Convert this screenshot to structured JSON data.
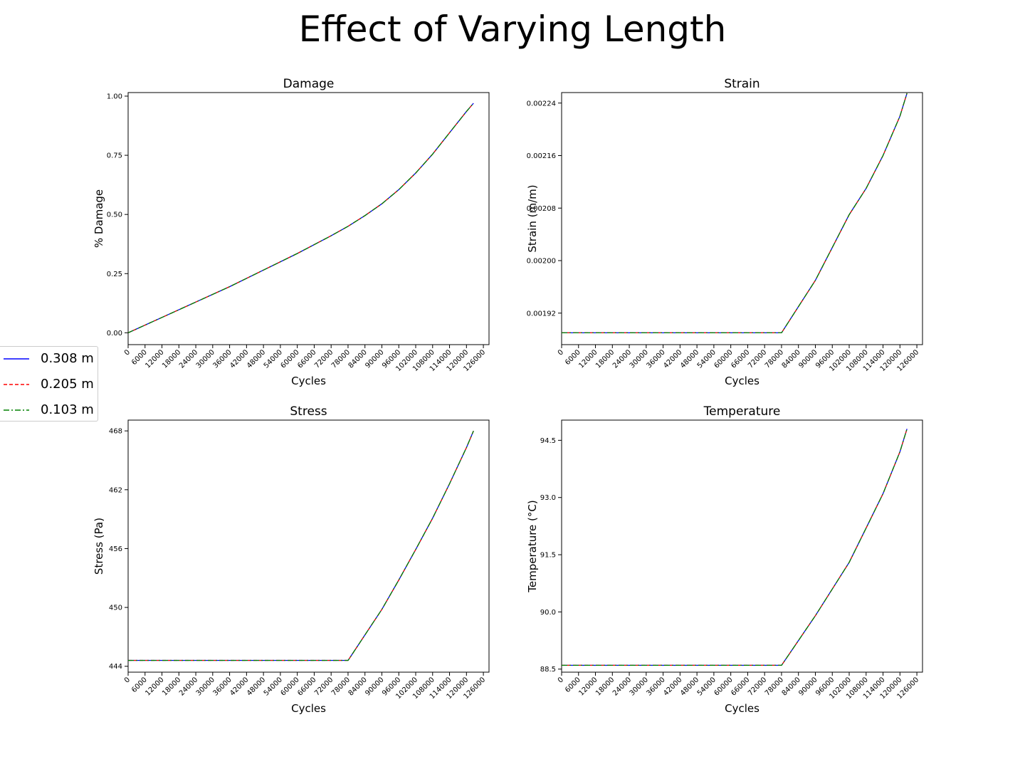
{
  "figure": {
    "title": "Effect of Varying Length",
    "legend": [
      {
        "label": "0.308 m",
        "color": "#0000ff",
        "style": "solid"
      },
      {
        "label": "0.205 m",
        "color": "#ff0000",
        "style": "dashed"
      },
      {
        "label": "0.103 m",
        "color": "#008000",
        "style": "dashdot"
      }
    ]
  },
  "chart_data": [
    {
      "type": "line",
      "title": "Damage",
      "xlabel": "Cycles",
      "ylabel": "% Damage",
      "xlim": [
        0,
        128000
      ],
      "ylim": [
        -0.05,
        1.015
      ],
      "xticks": [
        0,
        6000,
        12000,
        18000,
        24000,
        30000,
        36000,
        42000,
        48000,
        54000,
        60000,
        66000,
        72000,
        78000,
        84000,
        90000,
        96000,
        102000,
        108000,
        114000,
        120000,
        126000
      ],
      "yticks": [
        "0.00",
        "0.25",
        "0.50",
        "0.75",
        "1.00"
      ],
      "ytick_values": [
        0,
        0.25,
        0.5,
        0.75,
        1.0
      ],
      "x": [
        0,
        12000,
        24000,
        36000,
        48000,
        60000,
        72000,
        78000,
        84000,
        90000,
        96000,
        102000,
        108000,
        114000,
        120000,
        122500
      ],
      "series": [
        {
          "name": "0.308 m",
          "values": [
            0,
            0.065,
            0.13,
            0.195,
            0.265,
            0.335,
            0.41,
            0.45,
            0.495,
            0.545,
            0.605,
            0.675,
            0.755,
            0.845,
            0.935,
            0.97
          ]
        },
        {
          "name": "0.205 m",
          "values": [
            0,
            0.065,
            0.13,
            0.195,
            0.265,
            0.335,
            0.41,
            0.45,
            0.495,
            0.545,
            0.605,
            0.675,
            0.755,
            0.845,
            0.935,
            0.97
          ]
        },
        {
          "name": "0.103 m",
          "values": [
            0,
            0.065,
            0.13,
            0.195,
            0.265,
            0.335,
            0.41,
            0.45,
            0.495,
            0.545,
            0.605,
            0.675,
            0.755,
            0.845,
            0.935,
            0.97
          ]
        }
      ]
    },
    {
      "type": "line",
      "title": "Strain",
      "xlabel": "Cycles",
      "ylabel": "Strain (m/m)",
      "xlim": [
        0,
        128000
      ],
      "ylim": [
        0.001872,
        0.002256
      ],
      "xticks": [
        0,
        6000,
        12000,
        18000,
        24000,
        30000,
        36000,
        42000,
        48000,
        54000,
        60000,
        66000,
        72000,
        78000,
        84000,
        90000,
        96000,
        102000,
        108000,
        114000,
        120000,
        126000
      ],
      "yticks": [
        "0.00192",
        "0.00200",
        "0.00208",
        "0.00216",
        "0.00224"
      ],
      "ytick_values": [
        0.00192,
        0.002,
        0.00208,
        0.00216,
        0.00224
      ],
      "x": [
        0,
        78000,
        90000,
        96000,
        102000,
        108000,
        114000,
        120000,
        122500
      ],
      "series": [
        {
          "name": "0.308 m",
          "values": [
            0.00189,
            0.00189,
            0.00197,
            0.00202,
            0.00207,
            0.00211,
            0.00216,
            0.00222,
            0.002255
          ]
        },
        {
          "name": "0.205 m",
          "values": [
            0.00189,
            0.00189,
            0.00197,
            0.00202,
            0.00207,
            0.00211,
            0.00216,
            0.00222,
            0.002255
          ]
        },
        {
          "name": "0.103 m",
          "values": [
            0.00189,
            0.00189,
            0.00197,
            0.00202,
            0.00207,
            0.00211,
            0.00216,
            0.00222,
            0.002255
          ]
        }
      ]
    },
    {
      "type": "line",
      "title": "Stress",
      "xlabel": "Cycles",
      "ylabel": "Stress (Pa)",
      "xlim": [
        0,
        128000
      ],
      "ylim": [
        443.4,
        469.1
      ],
      "xticks": [
        0,
        6000,
        12000,
        18000,
        24000,
        30000,
        36000,
        42000,
        48000,
        54000,
        60000,
        66000,
        72000,
        78000,
        84000,
        90000,
        96000,
        102000,
        108000,
        114000,
        120000,
        126000
      ],
      "yticks": [
        "444",
        "450",
        "456",
        "462",
        "468"
      ],
      "ytick_values": [
        444,
        450,
        456,
        462,
        468
      ],
      "x": [
        0,
        78000,
        90000,
        96000,
        102000,
        108000,
        114000,
        120000,
        122500
      ],
      "series": [
        {
          "name": "0.308 m",
          "values": [
            444.6,
            444.6,
            449.8,
            452.8,
            455.9,
            459.1,
            462.6,
            466.3,
            468.0
          ]
        },
        {
          "name": "0.205 m",
          "values": [
            444.6,
            444.6,
            449.8,
            452.8,
            455.9,
            459.1,
            462.6,
            466.3,
            468.0
          ]
        },
        {
          "name": "0.103 m",
          "values": [
            444.6,
            444.6,
            449.8,
            452.8,
            455.9,
            459.1,
            462.6,
            466.3,
            468.0
          ]
        }
      ]
    },
    {
      "type": "line",
      "title": "Temperature",
      "xlabel": "Cycles",
      "ylabel": "Temperature (°C)",
      "xlim": [
        0,
        128000
      ],
      "ylim": [
        88.42,
        95.03
      ],
      "xticks": [
        0,
        6000,
        12000,
        18000,
        24000,
        30000,
        36000,
        42000,
        48000,
        54000,
        60000,
        66000,
        72000,
        78000,
        84000,
        90000,
        96000,
        102000,
        108000,
        114000,
        120000,
        126000
      ],
      "yticks": [
        "88.5",
        "90.0",
        "91.5",
        "93.0",
        "94.5"
      ],
      "ytick_values": [
        88.5,
        90.0,
        91.5,
        93.0,
        94.5
      ],
      "x": [
        0,
        78000,
        90000,
        96000,
        102000,
        108000,
        114000,
        120000,
        122500
      ],
      "series": [
        {
          "name": "0.308 m",
          "values": [
            88.6,
            88.6,
            89.9,
            90.6,
            91.3,
            92.2,
            93.1,
            94.2,
            94.8
          ]
        },
        {
          "name": "0.205 m",
          "values": [
            88.6,
            88.6,
            89.9,
            90.6,
            91.3,
            92.2,
            93.1,
            94.2,
            94.8
          ]
        },
        {
          "name": "0.103 m",
          "values": [
            88.6,
            88.6,
            89.9,
            90.6,
            91.3,
            92.2,
            93.1,
            94.2,
            94.8
          ]
        }
      ]
    }
  ]
}
